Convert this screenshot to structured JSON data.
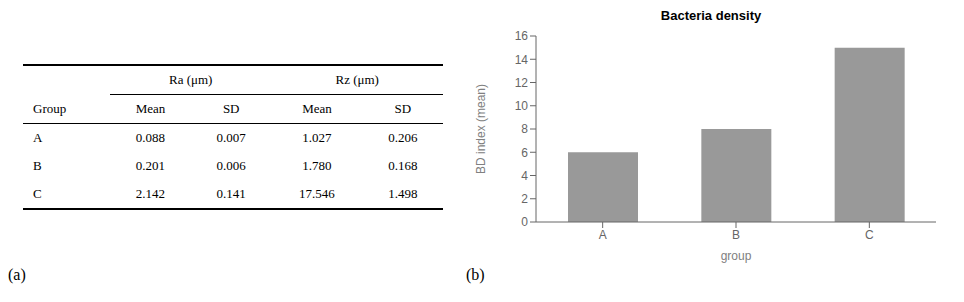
{
  "chart_data": [
    {
      "type": "table",
      "column_groups": [
        "Ra (μm)",
        "Rz (μm)"
      ],
      "columns": [
        "Group",
        "Mean",
        "SD",
        "Mean",
        "SD"
      ],
      "rows": [
        [
          "A",
          "0.088",
          "0.007",
          "1.027",
          "0.206"
        ],
        [
          "B",
          "0.201",
          "0.006",
          "1.780",
          "0.168"
        ],
        [
          "C",
          "2.142",
          "0.141",
          "17.546",
          "1.498"
        ]
      ],
      "annotations": [
        "(a)"
      ]
    },
    {
      "type": "bar",
      "title": "Bacteria density",
      "xlabel": "group",
      "ylabel": "BD index (mean)",
      "categories": [
        "A",
        "B",
        "C"
      ],
      "values": [
        6.0,
        8.0,
        15.0
      ],
      "color": "#999999",
      "ylim": [
        0,
        16
      ],
      "yticks": [
        0,
        2,
        4,
        6,
        8,
        10,
        12,
        14,
        16
      ],
      "grid": false,
      "annotations": [
        "(b)"
      ]
    }
  ]
}
